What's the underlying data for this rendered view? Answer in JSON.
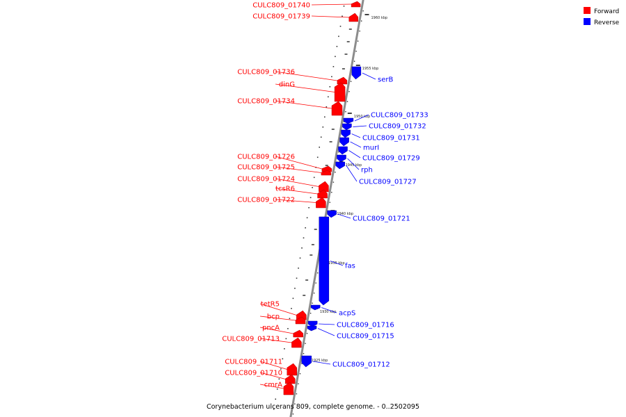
{
  "colors": {
    "forward": "#ff0000",
    "reverse": "#0000ff",
    "backbone": "#8c8c8c"
  },
  "legend": [
    {
      "label": "Forward",
      "color": "#ff0000"
    },
    {
      "label": "Reverse",
      "color": "#0000ff"
    }
  ],
  "caption": "Corynebacterium ulcerans 809, complete genome. - 0..2502095",
  "ticks": [
    "1960 kbp",
    "1955 kbp",
    "1950 kbp",
    "1945 kbp",
    "1940 kbp",
    "1935 kbp",
    "1930 kbp",
    "1925 kbp"
  ],
  "genes": {
    "forward": [
      "CULC809_01740",
      "CULC809_01739",
      "CULC809_01736",
      "dinG",
      "CULC809_01734",
      "CULC809_01726",
      "CULC809_01725",
      "CULC809_01724",
      "tcsR6",
      "CULC809_01722",
      "tetR5",
      "bcp",
      "pncA",
      "CULC809_01713",
      "CULC809_01711",
      "CULC809_01710",
      "cmrA"
    ],
    "reverse": [
      "serB",
      "CULC809_01733",
      "CULC809_01732",
      "CULC809_01731",
      "murI",
      "CULC809_01729",
      "rph",
      "CULC809_01727",
      "CULC809_01721",
      "fas",
      "acpS",
      "CULC809_01716",
      "CULC809_01715",
      "CULC809_01712"
    ]
  }
}
